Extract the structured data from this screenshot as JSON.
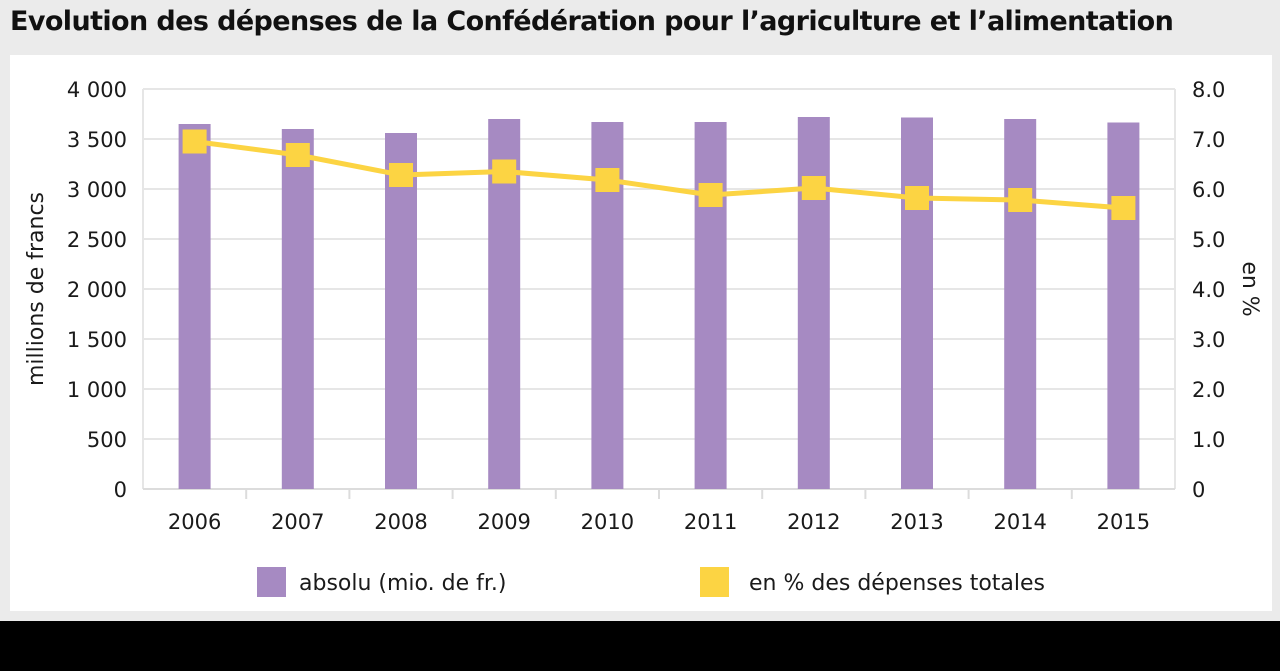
{
  "title": "Evolution des dépenses de la Confédération pour l’agriculture et l’alimentation",
  "colors": {
    "bar": "#a68ac2",
    "line": "#fcd443",
    "grid": "#e6e6e6",
    "background": "#ebebeb",
    "text": "#1a1a1a"
  },
  "chart_data": {
    "type": "bar",
    "categories": [
      "2006",
      "2007",
      "2008",
      "2009",
      "2010",
      "2011",
      "2012",
      "2013",
      "2014",
      "2015"
    ],
    "series": [
      {
        "name": "absolu (mio. de fr.)",
        "type": "bar",
        "axis": "left",
        "values": [
          3650,
          3600,
          3560,
          3700,
          3670,
          3670,
          3720,
          3715,
          3700,
          3665
        ]
      },
      {
        "name": "en % des dépenses totales",
        "type": "line",
        "axis": "right",
        "values": [
          6.95,
          6.68,
          6.28,
          6.35,
          6.18,
          5.88,
          6.02,
          5.82,
          5.78,
          5.62
        ]
      }
    ],
    "ylabel": "millions de francs",
    "y2label": "en %",
    "ylim": [
      0,
      4000
    ],
    "y2lim": [
      0,
      8
    ],
    "yticks": [
      "0",
      "500",
      "1 000",
      "1 500",
      "2 000",
      "2 500",
      "3 000",
      "3 500",
      "4 000"
    ],
    "y2ticks": [
      "0",
      "1.0",
      "2.0",
      "3.0",
      "4.0",
      "5.0",
      "6.0",
      "7.0",
      "8.0"
    ],
    "grid": true,
    "legend_position": "bottom"
  }
}
